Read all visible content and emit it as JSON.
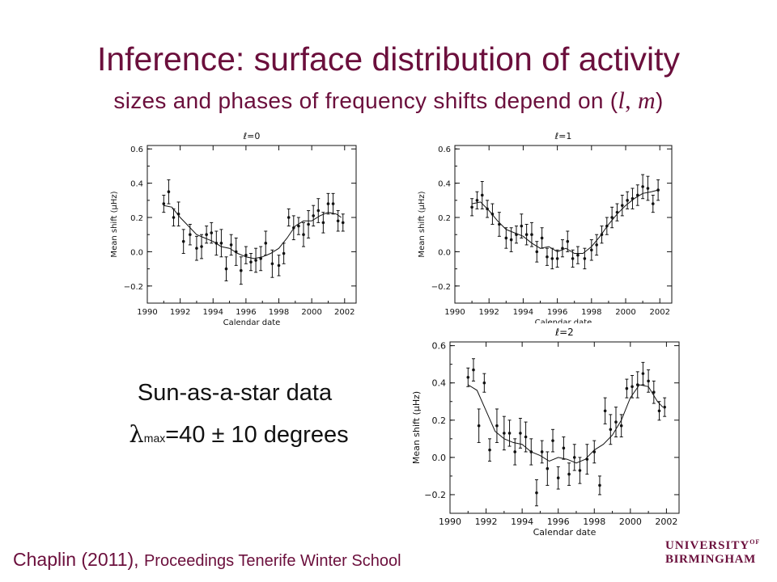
{
  "slide": {
    "title": "Inference: surface distribution of activity",
    "subtitle_prefix": "sizes and phases of frequency shifts depend on (",
    "subtitle_l": "l",
    "subtitle_sep": ",",
    "subtitle_m": "m",
    "subtitle_suffix": ")",
    "note_line1": "Sun-as-a-star data",
    "note_lambda": "λ",
    "note_lambda_sub": "max",
    "note_value": "=40 ± 10 degrees",
    "citation_main": "Chaplin (2011),",
    "citation_rest": "Proceedings Tenerife Winter School",
    "logo_line1": "UNIVERSITY",
    "logo_of": "OF",
    "logo_line2": "BIRMINGHAM"
  },
  "colors": {
    "title": "#6b0f3c",
    "plot": "#111111"
  },
  "chart_data": [
    {
      "type": "scatter",
      "title": "ℓ=0",
      "xlabel": "Calendar date",
      "ylabel": "Mean shift (μHz)",
      "xlim": [
        1990,
        2002.7
      ],
      "ylim": [
        -0.3,
        0.62
      ],
      "xticks": [
        "1990",
        "1992",
        "1994",
        "1996",
        "1998",
        "2000",
        "2002"
      ],
      "yticks": [
        "−0.2",
        "0.0",
        "0.2",
        "0.4",
        "0.6"
      ],
      "points": {
        "x": [
          1991.0,
          1991.3,
          1991.6,
          1991.9,
          1992.2,
          1992.6,
          1993.0,
          1993.3,
          1993.6,
          1993.9,
          1994.2,
          1994.5,
          1994.8,
          1995.1,
          1995.4,
          1995.7,
          1996.0,
          1996.3,
          1996.6,
          1996.9,
          1997.2,
          1997.6,
          1998.0,
          1998.3,
          1998.6,
          1998.9,
          1999.2,
          1999.5,
          1999.8,
          2000.1,
          2000.4,
          2000.7,
          2001.0,
          2001.3,
          2001.6,
          2001.9
        ],
        "y": [
          0.28,
          0.35,
          0.2,
          0.22,
          0.06,
          0.1,
          0.02,
          0.03,
          0.1,
          0.11,
          0.05,
          0.05,
          -0.1,
          0.04,
          0.0,
          -0.11,
          -0.02,
          -0.06,
          -0.05,
          -0.04,
          0.05,
          -0.07,
          -0.08,
          -0.01,
          0.2,
          0.14,
          0.15,
          0.1,
          0.16,
          0.21,
          0.24,
          0.17,
          0.28,
          0.28,
          0.18,
          0.17
        ],
        "err": [
          0.05,
          0.07,
          0.05,
          0.07,
          0.07,
          0.06,
          0.07,
          0.07,
          0.05,
          0.06,
          0.07,
          0.08,
          0.07,
          0.06,
          0.08,
          0.08,
          0.05,
          0.05,
          0.07,
          0.07,
          0.07,
          0.08,
          0.06,
          0.06,
          0.05,
          0.07,
          0.05,
          0.07,
          0.08,
          0.06,
          0.07,
          0.06,
          0.06,
          0.06,
          0.06,
          0.05
        ]
      },
      "fit": {
        "x": [
          1991.0,
          1991.5,
          1992.0,
          1992.5,
          1993.0,
          1993.5,
          1994.0,
          1994.5,
          1995.0,
          1995.5,
          1996.0,
          1996.5,
          1997.0,
          1997.5,
          1998.0,
          1998.5,
          1999.0,
          1999.5,
          2000.0,
          2000.5,
          2001.0,
          2001.5,
          2001.8
        ],
        "y": [
          0.27,
          0.26,
          0.2,
          0.15,
          0.1,
          0.08,
          0.06,
          0.03,
          0.02,
          -0.01,
          -0.03,
          -0.04,
          -0.03,
          -0.01,
          0.02,
          0.08,
          0.15,
          0.18,
          0.18,
          0.21,
          0.23,
          0.22,
          0.2
        ]
      },
      "grid": false
    },
    {
      "type": "scatter",
      "title": "ℓ=1",
      "xlabel": "Calendar date",
      "ylabel": "Mean shift (μHz)",
      "xlim": [
        1990,
        2002.7
      ],
      "ylim": [
        -0.3,
        0.62
      ],
      "xticks": [
        "1990",
        "1992",
        "1994",
        "1996",
        "1998",
        "2000",
        "2002"
      ],
      "yticks": [
        "−0.2",
        "0.0",
        "0.2",
        "0.4",
        "0.6"
      ],
      "points": {
        "x": [
          1991.0,
          1991.3,
          1991.6,
          1991.9,
          1992.2,
          1992.6,
          1993.0,
          1993.3,
          1993.6,
          1993.9,
          1994.2,
          1994.5,
          1994.8,
          1995.1,
          1995.4,
          1995.7,
          1996.0,
          1996.3,
          1996.6,
          1996.9,
          1997.2,
          1997.6,
          1998.0,
          1998.3,
          1998.6,
          1998.9,
          1999.2,
          1999.5,
          1999.8,
          2000.1,
          2000.4,
          2000.7,
          2001.0,
          2001.3,
          2001.6,
          2001.9
        ],
        "y": [
          0.26,
          0.3,
          0.33,
          0.25,
          0.22,
          0.16,
          0.08,
          0.07,
          0.1,
          0.15,
          0.1,
          0.1,
          0.0,
          0.08,
          -0.03,
          -0.04,
          -0.04,
          0.02,
          0.06,
          -0.04,
          -0.02,
          -0.04,
          0.01,
          0.04,
          0.1,
          0.15,
          0.2,
          0.23,
          0.27,
          0.3,
          0.31,
          0.33,
          0.38,
          0.37,
          0.28,
          0.36
        ],
        "err": [
          0.05,
          0.05,
          0.08,
          0.05,
          0.06,
          0.07,
          0.06,
          0.07,
          0.05,
          0.07,
          0.06,
          0.07,
          0.06,
          0.06,
          0.05,
          0.06,
          0.05,
          0.05,
          0.06,
          0.05,
          0.05,
          0.06,
          0.06,
          0.06,
          0.05,
          0.05,
          0.06,
          0.05,
          0.06,
          0.05,
          0.06,
          0.06,
          0.07,
          0.07,
          0.05,
          0.06
        ]
      },
      "fit": {
        "x": [
          1991.0,
          1991.5,
          1992.0,
          1992.5,
          1993.0,
          1993.5,
          1994.0,
          1994.5,
          1995.0,
          1995.5,
          1996.0,
          1996.5,
          1997.0,
          1997.5,
          1998.0,
          1998.5,
          1999.0,
          1999.5,
          2000.0,
          2000.5,
          2001.0,
          2001.5,
          2001.9
        ],
        "y": [
          0.28,
          0.29,
          0.24,
          0.18,
          0.13,
          0.11,
          0.09,
          0.05,
          0.02,
          0.03,
          0.0,
          0.02,
          -0.01,
          -0.01,
          0.03,
          0.09,
          0.16,
          0.22,
          0.27,
          0.31,
          0.34,
          0.35,
          0.36
        ]
      },
      "grid": false
    },
    {
      "type": "scatter",
      "title": "ℓ=2",
      "xlabel": "Calendar date",
      "ylabel": "Mean shift (μHz)",
      "xlim": [
        1990,
        2002.7
      ],
      "ylim": [
        -0.3,
        0.62
      ],
      "xticks": [
        "1990",
        "1992",
        "1994",
        "1996",
        "1998",
        "2000",
        "2002"
      ],
      "yticks": [
        "−0.2",
        "0.0",
        "0.2",
        "0.4",
        "0.6"
      ],
      "points": {
        "x": [
          1991.0,
          1991.3,
          1991.6,
          1991.9,
          1992.2,
          1992.6,
          1993.0,
          1993.3,
          1993.6,
          1993.9,
          1994.2,
          1994.5,
          1994.8,
          1995.1,
          1995.4,
          1995.7,
          1996.0,
          1996.3,
          1996.6,
          1996.9,
          1997.2,
          1997.6,
          1998.0,
          1998.3,
          1998.6,
          1998.9,
          1999.2,
          1999.5,
          1999.8,
          2000.1,
          2000.4,
          2000.7,
          2001.0,
          2001.3,
          2001.6,
          2001.9
        ],
        "y": [
          0.43,
          0.47,
          0.17,
          0.4,
          0.04,
          0.17,
          0.13,
          0.13,
          0.03,
          0.13,
          0.11,
          0.03,
          -0.19,
          0.03,
          -0.06,
          0.09,
          -0.11,
          0.05,
          -0.09,
          0.0,
          -0.07,
          -0.01,
          0.03,
          -0.15,
          0.25,
          0.15,
          0.19,
          0.17,
          0.37,
          0.38,
          0.39,
          0.45,
          0.41,
          0.35,
          0.25,
          0.27
        ],
        "err": [
          0.05,
          0.06,
          0.09,
          0.05,
          0.06,
          0.09,
          0.09,
          0.07,
          0.07,
          0.08,
          0.08,
          0.07,
          0.07,
          0.06,
          0.09,
          0.06,
          0.06,
          0.06,
          0.06,
          0.07,
          0.07,
          0.08,
          0.06,
          0.05,
          0.07,
          0.08,
          0.08,
          0.06,
          0.05,
          0.06,
          0.07,
          0.06,
          0.06,
          0.06,
          0.05,
          0.05
        ]
      },
      "fit": {
        "x": [
          1991.0,
          1991.5,
          1992.0,
          1992.5,
          1993.0,
          1993.5,
          1994.0,
          1994.5,
          1995.0,
          1995.5,
          1996.0,
          1996.5,
          1997.0,
          1997.5,
          1998.0,
          1998.5,
          1999.0,
          1999.5,
          2000.0,
          2000.5,
          2001.0,
          2001.5,
          2001.8
        ],
        "y": [
          0.39,
          0.36,
          0.25,
          0.14,
          0.1,
          0.08,
          0.07,
          0.03,
          0.01,
          -0.02,
          0.0,
          -0.01,
          -0.03,
          -0.01,
          0.04,
          0.07,
          0.12,
          0.2,
          0.32,
          0.39,
          0.38,
          0.3,
          0.27
        ]
      },
      "grid": false
    }
  ]
}
